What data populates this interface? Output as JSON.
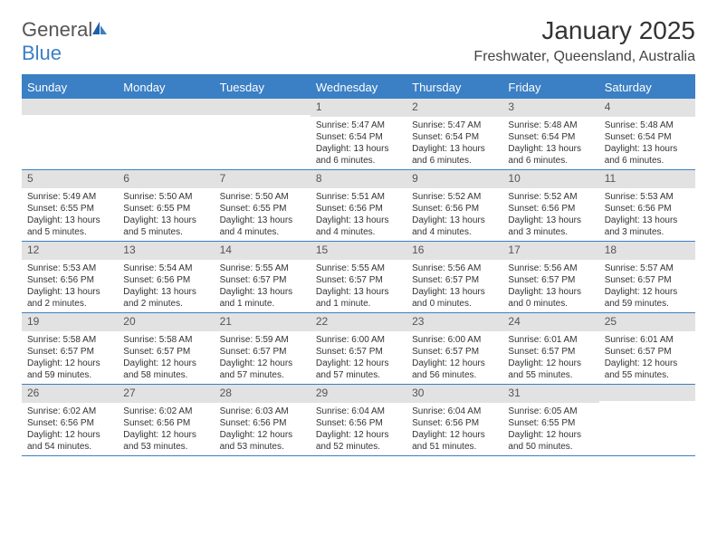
{
  "logo": {
    "text1": "General",
    "text2": "Blue"
  },
  "title": "January 2025",
  "location": "Freshwater, Queensland, Australia",
  "day_headers": [
    "Sunday",
    "Monday",
    "Tuesday",
    "Wednesday",
    "Thursday",
    "Friday",
    "Saturday"
  ],
  "colors": {
    "accent": "#3b7fc4",
    "header_bg": "#3b7fc4",
    "daynum_bg": "#e2e2e2",
    "text": "#333333",
    "bg": "#ffffff"
  },
  "weeks": [
    [
      {
        "n": "",
        "sunrise": "",
        "sunset": "",
        "daylight": ""
      },
      {
        "n": "",
        "sunrise": "",
        "sunset": "",
        "daylight": ""
      },
      {
        "n": "",
        "sunrise": "",
        "sunset": "",
        "daylight": ""
      },
      {
        "n": "1",
        "sunrise": "Sunrise: 5:47 AM",
        "sunset": "Sunset: 6:54 PM",
        "daylight": "Daylight: 13 hours and 6 minutes."
      },
      {
        "n": "2",
        "sunrise": "Sunrise: 5:47 AM",
        "sunset": "Sunset: 6:54 PM",
        "daylight": "Daylight: 13 hours and 6 minutes."
      },
      {
        "n": "3",
        "sunrise": "Sunrise: 5:48 AM",
        "sunset": "Sunset: 6:54 PM",
        "daylight": "Daylight: 13 hours and 6 minutes."
      },
      {
        "n": "4",
        "sunrise": "Sunrise: 5:48 AM",
        "sunset": "Sunset: 6:54 PM",
        "daylight": "Daylight: 13 hours and 6 minutes."
      }
    ],
    [
      {
        "n": "5",
        "sunrise": "Sunrise: 5:49 AM",
        "sunset": "Sunset: 6:55 PM",
        "daylight": "Daylight: 13 hours and 5 minutes."
      },
      {
        "n": "6",
        "sunrise": "Sunrise: 5:50 AM",
        "sunset": "Sunset: 6:55 PM",
        "daylight": "Daylight: 13 hours and 5 minutes."
      },
      {
        "n": "7",
        "sunrise": "Sunrise: 5:50 AM",
        "sunset": "Sunset: 6:55 PM",
        "daylight": "Daylight: 13 hours and 4 minutes."
      },
      {
        "n": "8",
        "sunrise": "Sunrise: 5:51 AM",
        "sunset": "Sunset: 6:56 PM",
        "daylight": "Daylight: 13 hours and 4 minutes."
      },
      {
        "n": "9",
        "sunrise": "Sunrise: 5:52 AM",
        "sunset": "Sunset: 6:56 PM",
        "daylight": "Daylight: 13 hours and 4 minutes."
      },
      {
        "n": "10",
        "sunrise": "Sunrise: 5:52 AM",
        "sunset": "Sunset: 6:56 PM",
        "daylight": "Daylight: 13 hours and 3 minutes."
      },
      {
        "n": "11",
        "sunrise": "Sunrise: 5:53 AM",
        "sunset": "Sunset: 6:56 PM",
        "daylight": "Daylight: 13 hours and 3 minutes."
      }
    ],
    [
      {
        "n": "12",
        "sunrise": "Sunrise: 5:53 AM",
        "sunset": "Sunset: 6:56 PM",
        "daylight": "Daylight: 13 hours and 2 minutes."
      },
      {
        "n": "13",
        "sunrise": "Sunrise: 5:54 AM",
        "sunset": "Sunset: 6:56 PM",
        "daylight": "Daylight: 13 hours and 2 minutes."
      },
      {
        "n": "14",
        "sunrise": "Sunrise: 5:55 AM",
        "sunset": "Sunset: 6:57 PM",
        "daylight": "Daylight: 13 hours and 1 minute."
      },
      {
        "n": "15",
        "sunrise": "Sunrise: 5:55 AM",
        "sunset": "Sunset: 6:57 PM",
        "daylight": "Daylight: 13 hours and 1 minute."
      },
      {
        "n": "16",
        "sunrise": "Sunrise: 5:56 AM",
        "sunset": "Sunset: 6:57 PM",
        "daylight": "Daylight: 13 hours and 0 minutes."
      },
      {
        "n": "17",
        "sunrise": "Sunrise: 5:56 AM",
        "sunset": "Sunset: 6:57 PM",
        "daylight": "Daylight: 13 hours and 0 minutes."
      },
      {
        "n": "18",
        "sunrise": "Sunrise: 5:57 AM",
        "sunset": "Sunset: 6:57 PM",
        "daylight": "Daylight: 12 hours and 59 minutes."
      }
    ],
    [
      {
        "n": "19",
        "sunrise": "Sunrise: 5:58 AM",
        "sunset": "Sunset: 6:57 PM",
        "daylight": "Daylight: 12 hours and 59 minutes."
      },
      {
        "n": "20",
        "sunrise": "Sunrise: 5:58 AM",
        "sunset": "Sunset: 6:57 PM",
        "daylight": "Daylight: 12 hours and 58 minutes."
      },
      {
        "n": "21",
        "sunrise": "Sunrise: 5:59 AM",
        "sunset": "Sunset: 6:57 PM",
        "daylight": "Daylight: 12 hours and 57 minutes."
      },
      {
        "n": "22",
        "sunrise": "Sunrise: 6:00 AM",
        "sunset": "Sunset: 6:57 PM",
        "daylight": "Daylight: 12 hours and 57 minutes."
      },
      {
        "n": "23",
        "sunrise": "Sunrise: 6:00 AM",
        "sunset": "Sunset: 6:57 PM",
        "daylight": "Daylight: 12 hours and 56 minutes."
      },
      {
        "n": "24",
        "sunrise": "Sunrise: 6:01 AM",
        "sunset": "Sunset: 6:57 PM",
        "daylight": "Daylight: 12 hours and 55 minutes."
      },
      {
        "n": "25",
        "sunrise": "Sunrise: 6:01 AM",
        "sunset": "Sunset: 6:57 PM",
        "daylight": "Daylight: 12 hours and 55 minutes."
      }
    ],
    [
      {
        "n": "26",
        "sunrise": "Sunrise: 6:02 AM",
        "sunset": "Sunset: 6:56 PM",
        "daylight": "Daylight: 12 hours and 54 minutes."
      },
      {
        "n": "27",
        "sunrise": "Sunrise: 6:02 AM",
        "sunset": "Sunset: 6:56 PM",
        "daylight": "Daylight: 12 hours and 53 minutes."
      },
      {
        "n": "28",
        "sunrise": "Sunrise: 6:03 AM",
        "sunset": "Sunset: 6:56 PM",
        "daylight": "Daylight: 12 hours and 53 minutes."
      },
      {
        "n": "29",
        "sunrise": "Sunrise: 6:04 AM",
        "sunset": "Sunset: 6:56 PM",
        "daylight": "Daylight: 12 hours and 52 minutes."
      },
      {
        "n": "30",
        "sunrise": "Sunrise: 6:04 AM",
        "sunset": "Sunset: 6:56 PM",
        "daylight": "Daylight: 12 hours and 51 minutes."
      },
      {
        "n": "31",
        "sunrise": "Sunrise: 6:05 AM",
        "sunset": "Sunset: 6:55 PM",
        "daylight": "Daylight: 12 hours and 50 minutes."
      },
      {
        "n": "",
        "sunrise": "",
        "sunset": "",
        "daylight": ""
      }
    ]
  ]
}
